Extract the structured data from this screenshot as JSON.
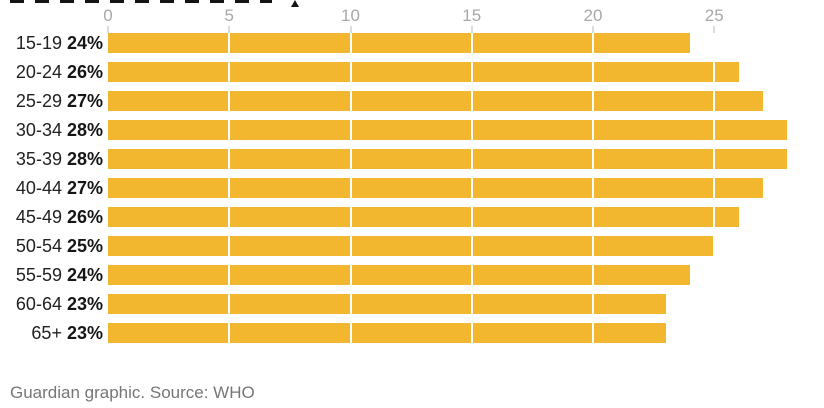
{
  "chart_data": {
    "type": "bar",
    "orientation": "horizontal",
    "categories": [
      "15-19",
      "20-24",
      "25-29",
      "30-34",
      "35-39",
      "40-44",
      "45-49",
      "50-54",
      "55-59",
      "60-64",
      "65+"
    ],
    "values": [
      24,
      26,
      27,
      28,
      28,
      27,
      26,
      25,
      24,
      23,
      23
    ],
    "value_labels": [
      "24%",
      "26%",
      "27%",
      "28%",
      "28%",
      "27%",
      "26%",
      "25%",
      "24%",
      "23%",
      "23%"
    ],
    "x_ticks": [
      0,
      5,
      10,
      15,
      20,
      25
    ],
    "x_tick_labels": [
      "0",
      "5",
      "10",
      "15",
      "20",
      "25"
    ],
    "xlim": [
      0,
      29.5
    ],
    "title": "",
    "xlabel": "",
    "ylabel": "",
    "legend": null,
    "grid": "vertical-white-over-bars",
    "bar_color": "#f2b72f"
  },
  "colors": {
    "bar": "#f2b72f",
    "axis_text": "#a8a8a8",
    "axis_tick": "#dcdcdc",
    "label_text": "#222222",
    "value_text": "#161616",
    "footer_text": "#767676",
    "title_remnant": "#141414",
    "background": "#ffffff"
  },
  "footer": {
    "credit": "Guardian graphic. Source: WHO"
  }
}
